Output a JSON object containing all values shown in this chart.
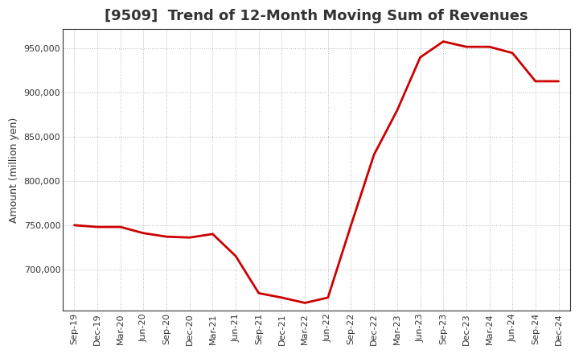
{
  "title": "[9509]  Trend of 12-Month Moving Sum of Revenues",
  "ylabel": "Amount (million yen)",
  "line_color": "#cc0000",
  "background_color": "#ffffff",
  "plot_bg_color": "#ffffff",
  "grid_color": "#bbbbbb",
  "x_labels": [
    "Sep-19",
    "Dec-19",
    "Mar-20",
    "Jun-20",
    "Sep-20",
    "Dec-20",
    "Mar-21",
    "Jun-21",
    "Sep-21",
    "Dec-21",
    "Mar-22",
    "Jun-22",
    "Sep-22",
    "Dec-22",
    "Mar-23",
    "Jun-23",
    "Sep-23",
    "Dec-23",
    "Mar-24",
    "Jun-24",
    "Sep-24",
    "Dec-24"
  ],
  "y_values": [
    750000,
    748000,
    748000,
    741000,
    737000,
    736000,
    740000,
    715000,
    673000,
    668000,
    662000,
    668000,
    750000,
    830000,
    880000,
    940000,
    958000,
    952000,
    952000,
    945000,
    913000,
    913000
  ],
  "ylim": [
    653000,
    972000
  ],
  "yticks": [
    700000,
    750000,
    800000,
    850000,
    900000,
    950000
  ],
  "line_width": 2.0,
  "title_fontsize": 13,
  "label_fontsize": 9,
  "tick_fontsize": 8
}
